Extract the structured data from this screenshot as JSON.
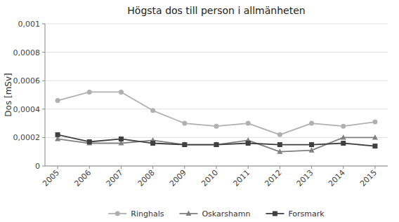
{
  "chart_data": {
    "type": "line",
    "title": "Högsta dos till person i allmänheten",
    "y_label": "Dos [mSv]",
    "x": [
      2005,
      2006,
      2007,
      2008,
      2009,
      2010,
      2011,
      2012,
      2013,
      2014,
      2015
    ],
    "series": [
      {
        "name": "Ringhals",
        "color": "#b0b0b0",
        "marker": "circle",
        "values": [
          0.00046,
          0.00052,
          0.00052,
          0.00039,
          0.0003,
          0.00028,
          0.0003,
          0.00022,
          0.0003,
          0.00028,
          0.00031
        ]
      },
      {
        "name": "Oskarshamn",
        "color": "#808080",
        "marker": "triangle",
        "values": [
          0.00019,
          0.00016,
          0.00016,
          0.00018,
          0.00015,
          0.00015,
          0.00018,
          0.0001,
          0.00011,
          0.0002,
          0.0002
        ]
      },
      {
        "name": "Forsmark",
        "color": "#404040",
        "marker": "square",
        "values": [
          0.00022,
          0.00017,
          0.00019,
          0.00016,
          0.00015,
          0.00015,
          0.00016,
          0.00015,
          0.00015,
          0.00016,
          0.00014
        ]
      }
    ],
    "xlim": [
      2004.6,
      2015.4
    ],
    "xticks": [
      2005,
      2006,
      2007,
      2008,
      2009,
      2010,
      2011,
      2012,
      2013,
      2014,
      2015
    ],
    "ylim": [
      0,
      0.001
    ],
    "yticks": [
      0,
      {
        "value": 0.0002,
        "label": "0,0002"
      },
      {
        "value": 0.0004,
        "label": "0,0004"
      },
      {
        "value": 0.0006,
        "label": "0,0006"
      },
      {
        "value": 0.0008,
        "label": "0,0008"
      },
      {
        "value": 0.001,
        "label": "0,001"
      }
    ],
    "grid": true,
    "legend": "bottom"
  }
}
